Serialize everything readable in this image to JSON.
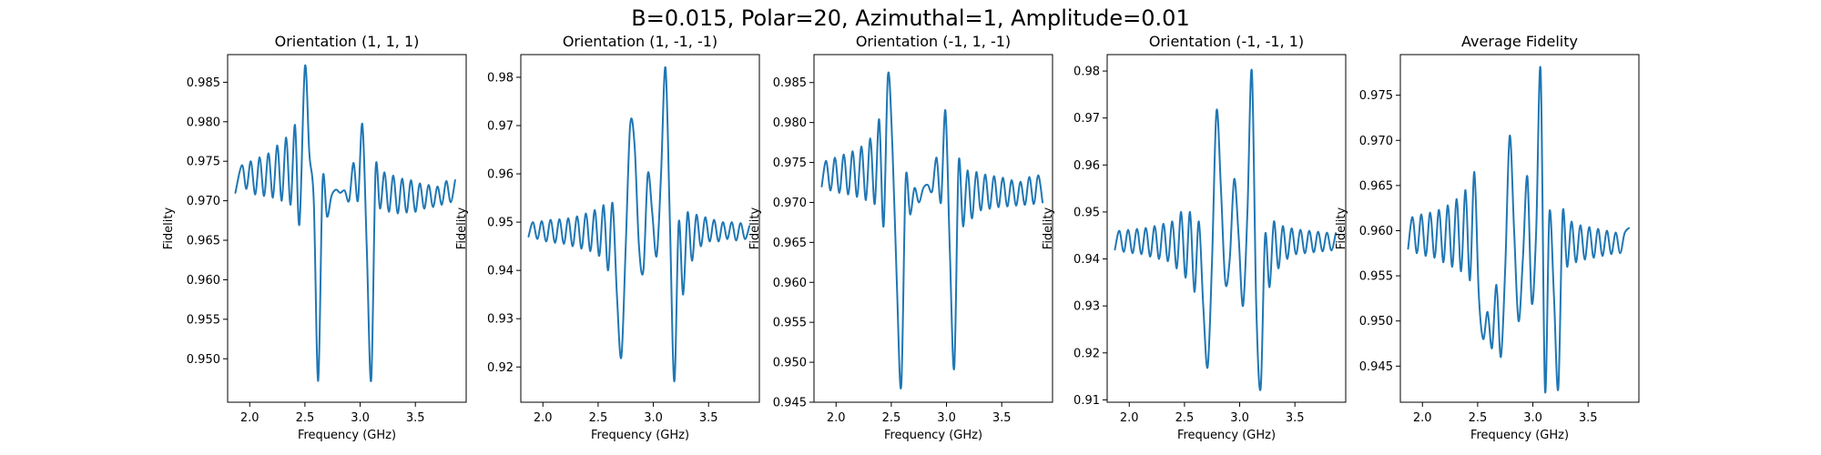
{
  "suptitle": "B=0.015, Polar=20, Azimuthal=1, Amplitude=0.01",
  "colors": {
    "line": "#1f77b4",
    "axes": "#000000",
    "background": "#ffffff"
  },
  "chart_data": [
    {
      "type": "line",
      "title": "Orientation (1, 1, 1)",
      "xlabel": "Frequency (GHz)",
      "ylabel": "Fidelity",
      "xlim": [
        1.8,
        3.96
      ],
      "ylim": [
        0.9445,
        0.9885
      ],
      "xticks": [
        "2.0",
        "2.5",
        "3.0",
        "3.5"
      ],
      "xtick_values": [
        2.0,
        2.5,
        3.0,
        3.5
      ],
      "yticks": [
        "0.950",
        "0.955",
        "0.960",
        "0.965",
        "0.970",
        "0.975",
        "0.980",
        "0.985"
      ],
      "ytick_values": [
        0.95,
        0.955,
        0.96,
        0.965,
        0.97,
        0.975,
        0.98,
        0.985
      ],
      "grid": false,
      "series": [
        {
          "x": [
            1.87,
            1.93,
            1.97,
            2.01,
            2.05,
            2.09,
            2.13,
            2.17,
            2.21,
            2.25,
            2.29,
            2.33,
            2.37,
            2.41,
            2.45,
            2.5,
            2.54,
            2.58,
            2.62,
            2.66,
            2.7,
            2.74,
            2.78,
            2.82,
            2.86,
            2.9,
            2.94,
            2.98,
            3.02,
            3.06,
            3.1,
            3.14,
            3.18,
            3.22,
            3.26,
            3.3,
            3.34,
            3.38,
            3.42,
            3.46,
            3.5,
            3.54,
            3.58,
            3.62,
            3.66,
            3.7,
            3.74,
            3.78,
            3.82,
            3.86
          ],
          "y": [
            0.971,
            0.9745,
            0.9715,
            0.975,
            0.9708,
            0.9755,
            0.9706,
            0.976,
            0.9704,
            0.977,
            0.97,
            0.978,
            0.9695,
            0.9796,
            0.967,
            0.987,
            0.976,
            0.97,
            0.9472,
            0.9725,
            0.968,
            0.9706,
            0.9714,
            0.971,
            0.9713,
            0.97,
            0.9748,
            0.97,
            0.9797,
            0.964,
            0.9473,
            0.974,
            0.969,
            0.9736,
            0.9686,
            0.9732,
            0.9684,
            0.9728,
            0.9685,
            0.9726,
            0.9686,
            0.9722,
            0.969,
            0.972,
            0.9692,
            0.9718,
            0.9695,
            0.9725,
            0.9698,
            0.9726
          ]
        }
      ]
    },
    {
      "type": "line",
      "title": "Orientation (1, -1, -1)",
      "xlabel": "Frequency (GHz)",
      "ylabel": "Fidelity",
      "xlim": [
        1.8,
        3.96
      ],
      "ylim": [
        0.9127,
        0.9847
      ],
      "xticks": [
        "2.0",
        "2.5",
        "3.0",
        "3.5"
      ],
      "xtick_values": [
        2.0,
        2.5,
        3.0,
        3.5
      ],
      "yticks": [
        "0.92",
        "0.93",
        "0.94",
        "0.95",
        "0.96",
        "0.97",
        "0.98"
      ],
      "ytick_values": [
        0.92,
        0.93,
        0.94,
        0.95,
        0.96,
        0.97,
        0.98
      ],
      "grid": false,
      "series": [
        {
          "x": [
            1.87,
            1.91,
            1.95,
            1.99,
            2.03,
            2.07,
            2.11,
            2.15,
            2.19,
            2.23,
            2.27,
            2.31,
            2.35,
            2.39,
            2.43,
            2.47,
            2.51,
            2.55,
            2.59,
            2.63,
            2.67,
            2.71,
            2.75,
            2.79,
            2.83,
            2.87,
            2.91,
            2.95,
            2.99,
            3.03,
            3.07,
            3.11,
            3.15,
            3.19,
            3.23,
            3.27,
            3.31,
            3.35,
            3.39,
            3.43,
            3.47,
            3.51,
            3.55,
            3.59,
            3.63,
            3.67,
            3.71,
            3.75,
            3.79,
            3.83,
            3.87
          ],
          "y": [
            0.947,
            0.95,
            0.9465,
            0.9502,
            0.946,
            0.9505,
            0.9457,
            0.9506,
            0.9455,
            0.9508,
            0.945,
            0.9512,
            0.9445,
            0.9518,
            0.944,
            0.9525,
            0.943,
            0.9535,
            0.94,
            0.954,
            0.935,
            0.922,
            0.945,
            0.97,
            0.966,
            0.945,
            0.94,
            0.96,
            0.952,
            0.943,
            0.96,
            0.982,
            0.95,
            0.917,
            0.95,
            0.935,
            0.952,
            0.942,
            0.9515,
            0.945,
            0.951,
            0.946,
            0.9505,
            0.946,
            0.95,
            0.9465,
            0.95,
            0.9462,
            0.9498,
            0.9465,
            0.9492
          ]
        }
      ]
    },
    {
      "type": "line",
      "title": "Orientation (-1, 1, -1)",
      "xlabel": "Frequency (GHz)",
      "ylabel": "Fidelity",
      "xlim": [
        1.8,
        3.96
      ],
      "ylim": [
        0.945,
        0.9885
      ],
      "xticks": [
        "2.0",
        "2.5",
        "3.0",
        "3.5"
      ],
      "xtick_values": [
        2.0,
        2.5,
        3.0,
        3.5
      ],
      "yticks": [
        "0.945",
        "0.950",
        "0.955",
        "0.960",
        "0.965",
        "0.970",
        "0.975",
        "0.980",
        "0.985"
      ],
      "ytick_values": [
        0.945,
        0.95,
        0.955,
        0.96,
        0.965,
        0.97,
        0.975,
        0.98,
        0.985
      ],
      "grid": false,
      "series": [
        {
          "x": [
            1.87,
            1.91,
            1.95,
            1.99,
            2.03,
            2.07,
            2.11,
            2.15,
            2.19,
            2.23,
            2.27,
            2.31,
            2.35,
            2.39,
            2.43,
            2.47,
            2.51,
            2.55,
            2.59,
            2.63,
            2.67,
            2.71,
            2.75,
            2.79,
            2.83,
            2.87,
            2.91,
            2.95,
            2.99,
            3.03,
            3.07,
            3.11,
            3.15,
            3.19,
            3.23,
            3.27,
            3.31,
            3.35,
            3.39,
            3.43,
            3.47,
            3.51,
            3.55,
            3.59,
            3.63,
            3.67,
            3.71,
            3.75,
            3.79,
            3.83,
            3.87
          ],
          "y": [
            0.972,
            0.9752,
            0.9715,
            0.9756,
            0.9712,
            0.976,
            0.971,
            0.9764,
            0.9707,
            0.977,
            0.9703,
            0.978,
            0.9698,
            0.9804,
            0.967,
            0.986,
            0.977,
            0.96,
            0.947,
            0.9728,
            0.9685,
            0.9718,
            0.97,
            0.9718,
            0.9722,
            0.9714,
            0.9756,
            0.97,
            0.9815,
            0.964,
            0.9493,
            0.975,
            0.967,
            0.974,
            0.968,
            0.9738,
            0.969,
            0.9735,
            0.9692,
            0.9733,
            0.9694,
            0.9731,
            0.9695,
            0.9728,
            0.9696,
            0.9726,
            0.9697,
            0.9732,
            0.9698,
            0.9734,
            0.97
          ]
        }
      ]
    },
    {
      "type": "line",
      "title": "Orientation (-1, -1, 1)",
      "xlabel": "Frequency (GHz)",
      "ylabel": "Fidelity",
      "xlim": [
        1.8,
        3.96
      ],
      "ylim": [
        0.9095,
        0.9835
      ],
      "xticks": [
        "2.0",
        "2.5",
        "3.0",
        "3.5"
      ],
      "xtick_values": [
        2.0,
        2.5,
        3.0,
        3.5
      ],
      "yticks": [
        "0.91",
        "0.92",
        "0.93",
        "0.94",
        "0.95",
        "0.96",
        "0.97",
        "0.98"
      ],
      "ytick_values": [
        0.91,
        0.92,
        0.93,
        0.94,
        0.95,
        0.96,
        0.97,
        0.98
      ],
      "grid": false,
      "series": [
        {
          "x": [
            1.87,
            1.91,
            1.95,
            1.99,
            2.03,
            2.07,
            2.11,
            2.15,
            2.19,
            2.23,
            2.27,
            2.31,
            2.35,
            2.39,
            2.43,
            2.47,
            2.51,
            2.55,
            2.59,
            2.63,
            2.67,
            2.71,
            2.75,
            2.79,
            2.83,
            2.87,
            2.91,
            2.95,
            2.99,
            3.03,
            3.07,
            3.11,
            3.15,
            3.19,
            3.23,
            3.27,
            3.31,
            3.35,
            3.39,
            3.43,
            3.47,
            3.51,
            3.55,
            3.59,
            3.63,
            3.67,
            3.71,
            3.75,
            3.79,
            3.83,
            3.87
          ],
          "y": [
            0.942,
            0.946,
            0.9415,
            0.9462,
            0.9412,
            0.9464,
            0.941,
            0.9466,
            0.9405,
            0.947,
            0.94,
            0.9475,
            0.9395,
            0.948,
            0.938,
            0.95,
            0.936,
            0.95,
            0.933,
            0.948,
            0.93,
            0.917,
            0.94,
            0.9715,
            0.955,
            0.935,
            0.94,
            0.957,
            0.945,
            0.93,
            0.95,
            0.98,
            0.93,
            0.9125,
            0.945,
            0.934,
            0.948,
            0.938,
            0.947,
            0.94,
            0.9465,
            0.941,
            0.9462,
            0.9412,
            0.946,
            0.9414,
            0.9458,
            0.9416,
            0.9456,
            0.9418,
            0.9455
          ]
        }
      ]
    },
    {
      "type": "line",
      "title": "Average Fidelity",
      "xlabel": "Frequency (GHz)",
      "ylabel": "Fidelity",
      "xlim": [
        1.8,
        3.96
      ],
      "ylim": [
        0.941,
        0.9795
      ],
      "xticks": [
        "2.0",
        "2.5",
        "3.0",
        "3.5"
      ],
      "xtick_values": [
        2.0,
        2.5,
        3.0,
        3.5
      ],
      "yticks": [
        "0.945",
        "0.950",
        "0.955",
        "0.960",
        "0.965",
        "0.970",
        "0.975"
      ],
      "ytick_values": [
        0.945,
        0.95,
        0.955,
        0.96,
        0.965,
        0.97,
        0.975
      ],
      "grid": false,
      "series": [
        {
          "x": [
            1.87,
            1.91,
            1.95,
            1.99,
            2.03,
            2.07,
            2.11,
            2.15,
            2.19,
            2.23,
            2.27,
            2.31,
            2.35,
            2.39,
            2.43,
            2.47,
            2.51,
            2.55,
            2.59,
            2.63,
            2.67,
            2.71,
            2.75,
            2.79,
            2.83,
            2.87,
            2.91,
            2.95,
            2.99,
            3.03,
            3.07,
            3.11,
            3.15,
            3.19,
            3.23,
            3.27,
            3.31,
            3.35,
            3.39,
            3.43,
            3.47,
            3.51,
            3.55,
            3.59,
            3.63,
            3.67,
            3.71,
            3.75,
            3.79,
            3.83,
            3.87
          ],
          "y": [
            0.958,
            0.9615,
            0.9575,
            0.9618,
            0.9572,
            0.962,
            0.957,
            0.9623,
            0.9565,
            0.9628,
            0.956,
            0.9635,
            0.9555,
            0.9645,
            0.9545,
            0.9665,
            0.953,
            0.948,
            0.951,
            0.947,
            0.954,
            0.946,
            0.956,
            0.9705,
            0.96,
            0.95,
            0.957,
            0.966,
            0.952,
            0.96,
            0.9778,
            0.9423,
            0.962,
            0.953,
            0.9425,
            0.962,
            0.956,
            0.961,
            0.9565,
            0.9606,
            0.9568,
            0.9604,
            0.957,
            0.9602,
            0.9572,
            0.96,
            0.9574,
            0.9598,
            0.9575,
            0.9597,
            0.9603
          ]
        }
      ]
    }
  ]
}
